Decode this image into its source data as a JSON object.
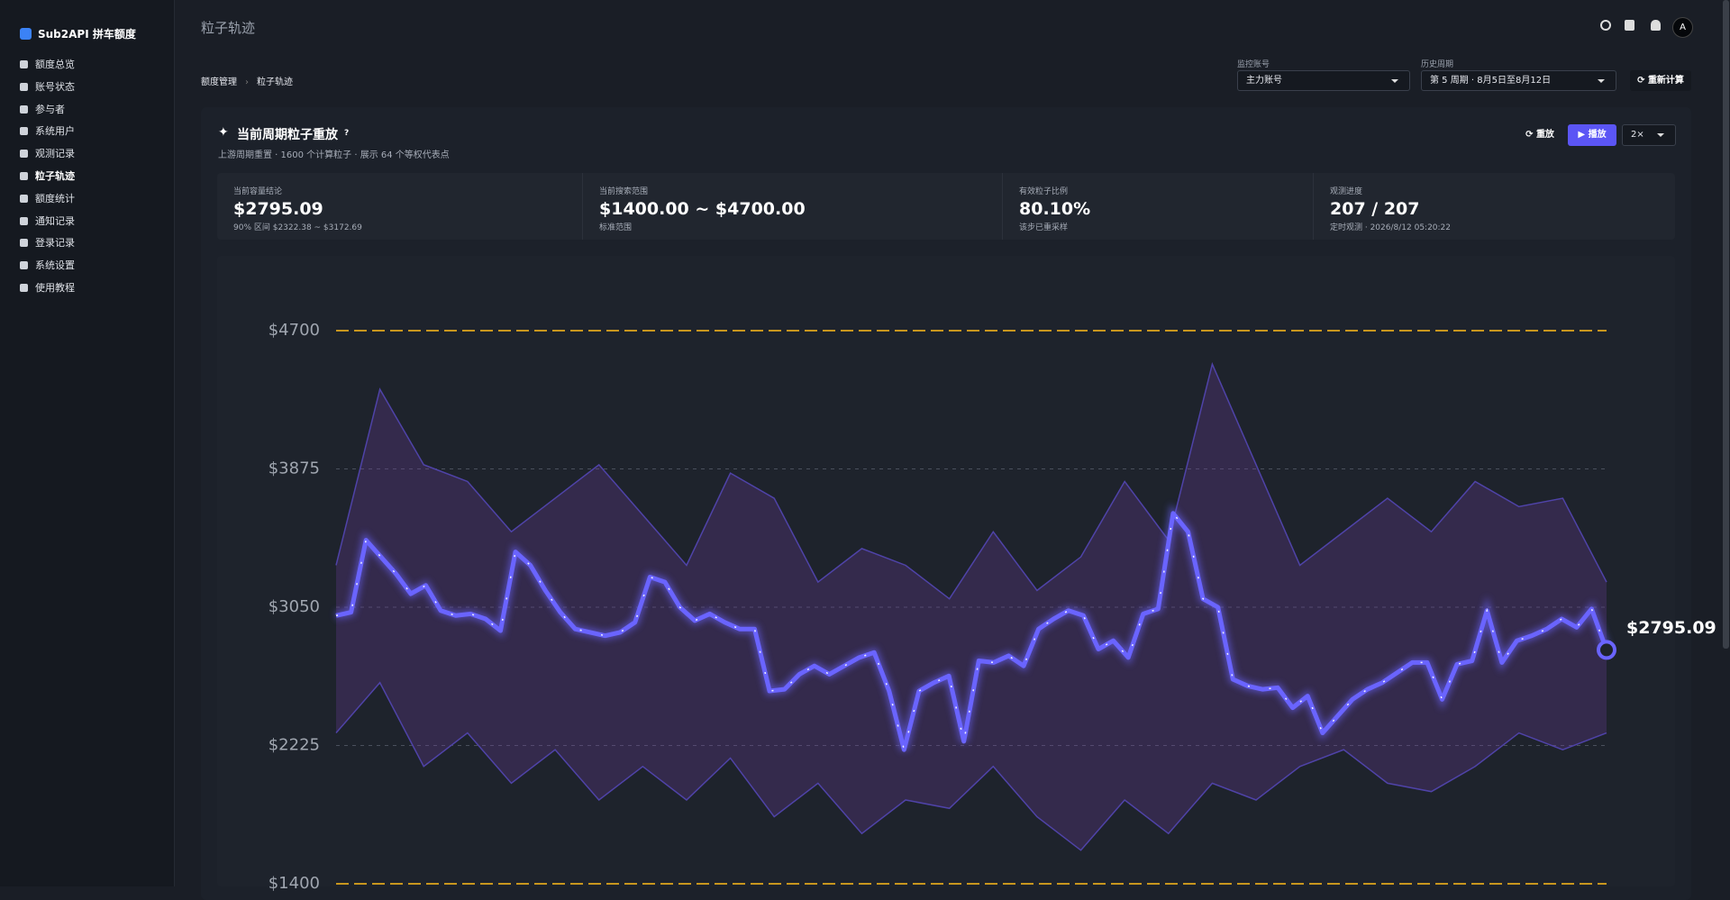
{
  "sidebar": {
    "brand": "Sub2API 拼车额度",
    "nav": [
      "额度总览",
      "账号状态",
      "参与者",
      "系统用户",
      "观测记录",
      "粒子轨迹",
      "额度统计",
      "通知记录",
      "登录记录",
      "系统设置",
      "使用教程"
    ]
  },
  "header": {
    "title": "粒子轨迹",
    "avatar": "A"
  },
  "breadcrumb": [
    "额度管理",
    "粒子轨迹"
  ],
  "filters": {
    "account": {
      "label": "监控账号",
      "value": "主力账号"
    },
    "period": {
      "label": "历史周期",
      "value": "第 5 周期 · 8月5日至8月12日"
    }
  },
  "buttons": {
    "recalc": "重新计算",
    "replay": "重放",
    "play": "播放",
    "speed": "2×"
  },
  "card": {
    "title": "当前周期粒子重放",
    "help": "?",
    "subtitle": "上游周期重置 · 1600 个计算粒子 · 展示 64 个等权代表点"
  },
  "stats": [
    {
      "label": "当前容量结论",
      "value": "$2795.09",
      "note": "90% 区间 $2322.38 ~ $3172.69"
    },
    {
      "label": "当前搜索范围",
      "value": "$1400.00 ~ $4700.00",
      "note": "标准范围"
    },
    {
      "label": "有效粒子比例",
      "value": "80.10%",
      "note": "该步已重采样"
    },
    {
      "label": "观测进度",
      "value": "207 / 207",
      "note": "定时观测 · 2026/8/12 05:20:22"
    }
  ],
  "chart_data": {
    "type": "line",
    "ylim": [
      1400,
      4700
    ],
    "yticks": [
      {
        "value": 1400,
        "label": "$1400"
      },
      {
        "value": 2225,
        "label": "$2225"
      },
      {
        "value": 3050,
        "label": "$3050"
      },
      {
        "value": 3875,
        "label": "$3875"
      },
      {
        "value": 4700,
        "label": "$4700"
      }
    ],
    "grid": true,
    "grid_color": "#4a505c",
    "range_color": "#c8961e",
    "series": [
      {
        "color": "#6a64ff",
        "values": [
          3000,
          3020,
          3450,
          3350,
          3250,
          3130,
          3180,
          3030,
          3000,
          3010,
          2980,
          2910,
          3380,
          3300,
          3150,
          3020,
          2920,
          2900,
          2880,
          2900,
          2960,
          3230,
          3200,
          3050,
          2970,
          3010,
          2960,
          2920,
          2920,
          2550,
          2560,
          2650,
          2700,
          2650,
          2700,
          2750,
          2780,
          2550,
          2200,
          2550,
          2600,
          2640,
          2250,
          2730,
          2720,
          2760,
          2700,
          2920,
          2980,
          3030,
          3000,
          2800,
          2850,
          2750,
          3010,
          3040,
          3610,
          3500,
          3100,
          3050,
          2620,
          2580,
          2560,
          2570,
          2450,
          2520,
          2300,
          2400,
          2500,
          2560,
          2600,
          2660,
          2720,
          2720,
          2500,
          2710,
          2730,
          3030,
          2720,
          2850,
          2880,
          2920,
          2980,
          2930,
          3040,
          2795.09
        ]
      }
    ],
    "end_label": "$2795.09",
    "band": {
      "color": "#4f43a8",
      "upper": [
        3300,
        4350,
        3900,
        3800,
        3500,
        3700,
        3900,
        3600,
        3300,
        3850,
        3700,
        3200,
        3400,
        3300,
        3100,
        3500,
        3150,
        3350,
        3800,
        3450,
        4500,
        3900,
        3300,
        3500,
        3700,
        3500,
        3800,
        3650,
        3700,
        3200
      ],
      "lower": [
        2300,
        2600,
        2100,
        2300,
        2000,
        2200,
        1900,
        2100,
        1900,
        2150,
        1800,
        2000,
        1700,
        1900,
        1850,
        2100,
        1800,
        1600,
        1900,
        1700,
        2000,
        1900,
        2100,
        2200,
        2000,
        1950,
        2100,
        2300,
        2200,
        2300
      ]
    }
  }
}
